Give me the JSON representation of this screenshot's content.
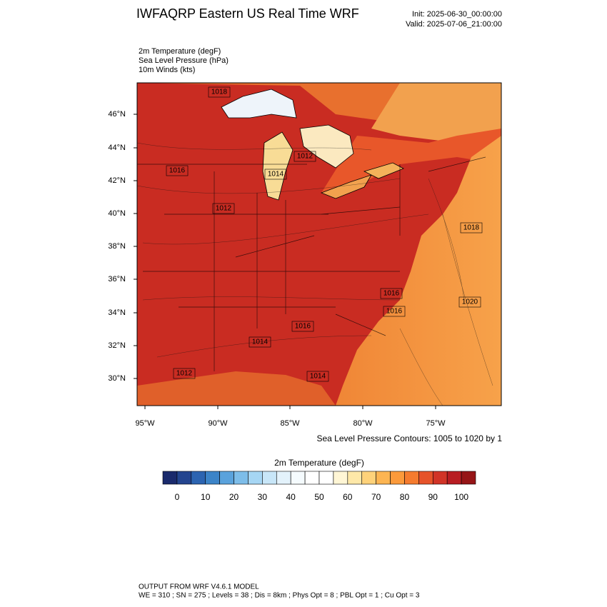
{
  "header": {
    "title": "IWFAQRP Eastern US Real Time WRF",
    "init": "Init: 2025-06-30_00:00:00",
    "valid": "Valid: 2025-07-06_21:00:00"
  },
  "fields": [
    "2m Temperature   (degF)",
    "Sea Level Pressure   (hPa)",
    "10m Winds   (kts)"
  ],
  "map": {
    "lat_labels": [
      "46°N",
      "44°N",
      "42°N",
      "40°N",
      "38°N",
      "36°N",
      "34°N",
      "32°N",
      "30°N"
    ],
    "lon_labels": [
      "95°W",
      "90°W",
      "85°W",
      "80°W",
      "75°W"
    ],
    "contour_labels": [
      "1018",
      "1016",
      "1014",
      "1012",
      "1012",
      "1018",
      "1020",
      "1016",
      "1014",
      "1012",
      "1014",
      "1016",
      "1016"
    ]
  },
  "contour_note": "Sea Level Pressure Contours: 1005 to 1020 by 1",
  "colorbar": {
    "title": "2m Temperature  (degF)",
    "colors": [
      "#1a2a6c",
      "#24458f",
      "#2c64b1",
      "#3c84c8",
      "#5aa2dc",
      "#7dbde9",
      "#a6d6f4",
      "#c8e6f8",
      "#e3f2fb",
      "#f5fbfe",
      "#ffffff",
      "#ffffff",
      "#fff6d5",
      "#fee8a8",
      "#fed27a",
      "#fdb552",
      "#fb9a3b",
      "#f57b2e",
      "#e6532a",
      "#d13427",
      "#b81d22",
      "#961517"
    ],
    "labels": [
      "0",
      "10",
      "20",
      "30",
      "40",
      "50",
      "60",
      "70",
      "80",
      "90",
      "100"
    ]
  },
  "footer": [
    "OUTPUT FROM WRF V4.6.1 MODEL",
    "WE = 310 ; SN = 275 ; Levels = 38 ; Dis = 8km ; Phys Opt = 8 ; PBL Opt = 1 ; Cu Opt = 3"
  ]
}
